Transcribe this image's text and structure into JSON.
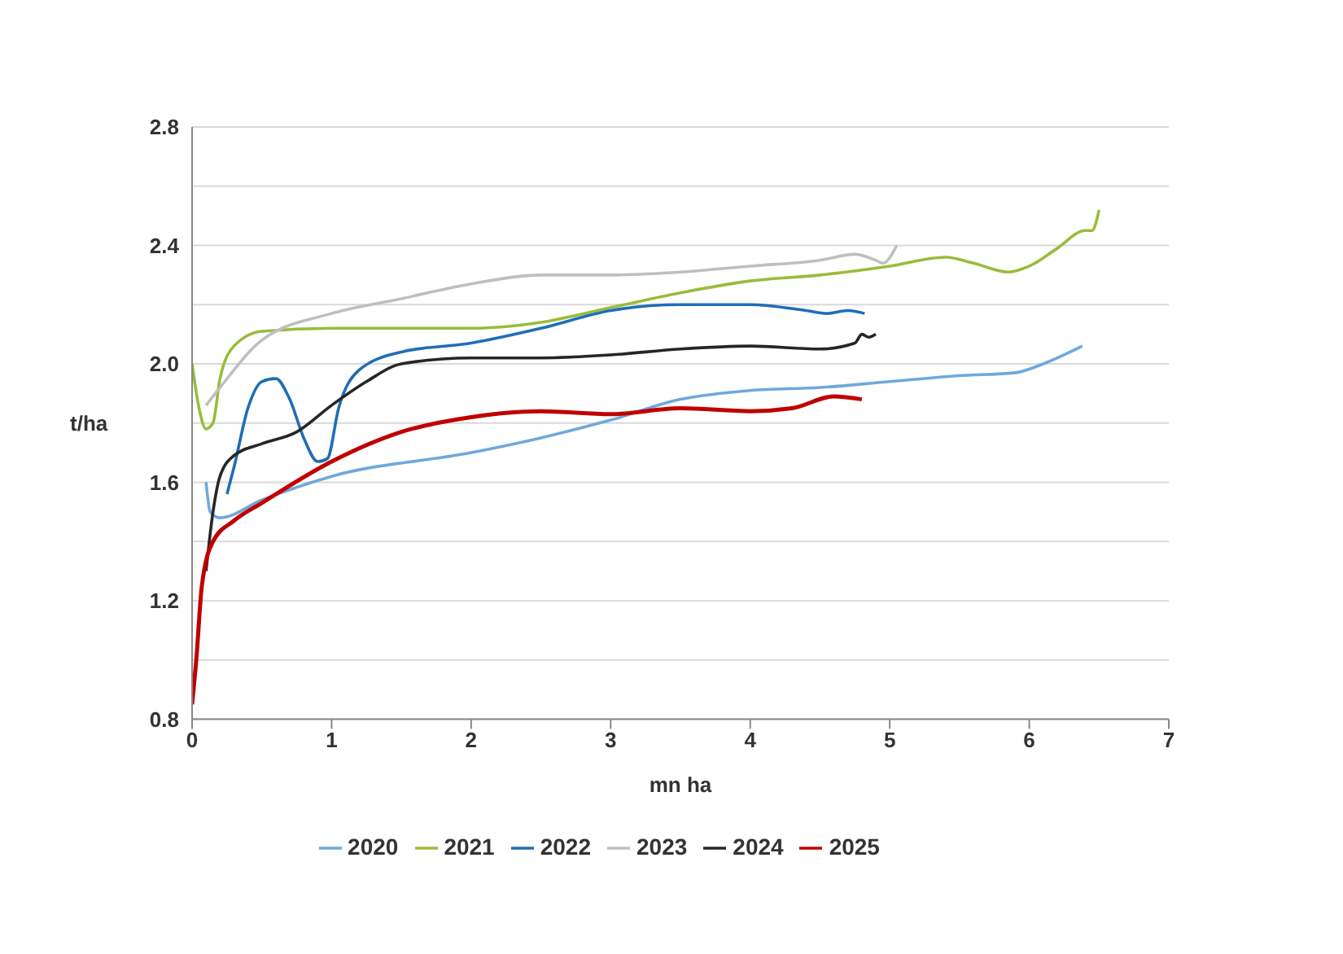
{
  "chart_data": {
    "type": "line",
    "xlabel": "mn ha",
    "ylabel": "t/ha",
    "xlim": [
      0,
      7
    ],
    "xticks": [
      0,
      1,
      2,
      3,
      4,
      5,
      6,
      7
    ],
    "ylim": [
      0.8,
      2.8
    ],
    "yticks": [
      0.8,
      {
        "value": 1.0,
        "label": null
      },
      1.2,
      {
        "value": 1.4,
        "label": null
      },
      1.6,
      {
        "value": 1.8,
        "label": null
      },
      {
        "value": 2.0,
        "label": "2.0"
      },
      {
        "value": 2.2,
        "label": null
      },
      2.4,
      {
        "value": 2.6,
        "label": null
      },
      2.8
    ],
    "grid": "y",
    "legend": "bottom",
    "marker": "none",
    "line_style": "solid",
    "series": [
      {
        "name": "2020",
        "color": "#6fa8dc",
        "x": [
          0.1,
          0.13,
          0.2,
          0.5,
          1,
          2,
          2.5,
          3,
          3.5,
          4,
          4.5,
          5,
          5.5,
          5.9,
          6.1,
          6.38
        ],
        "values": [
          1.6,
          1.5,
          1.48,
          1.54,
          1.62,
          1.7,
          1.75,
          1.81,
          1.88,
          1.91,
          1.92,
          1.94,
          1.96,
          1.97,
          2.0,
          2.06
        ]
      },
      {
        "name": "2021",
        "color": "#9bbb3b",
        "x": [
          0,
          0.05,
          0.1,
          0.15,
          0.2,
          0.3,
          0.5,
          1,
          2,
          2.5,
          3,
          3.5,
          4,
          4.5,
          5,
          5.4,
          5.6,
          5.85,
          6,
          6.2,
          6.4,
          6.45,
          6.5
        ],
        "values": [
          2.0,
          1.85,
          1.78,
          1.8,
          1.95,
          2.06,
          2.11,
          2.12,
          2.12,
          2.14,
          2.19,
          2.24,
          2.28,
          2.3,
          2.33,
          2.36,
          2.34,
          2.31,
          2.33,
          2.39,
          2.45,
          2.45,
          2.52
        ]
      },
      {
        "name": "2022",
        "color": "#1f6eb5",
        "x": [
          0.25,
          0.3,
          0.4,
          0.5,
          0.6,
          0.7,
          0.8,
          0.9,
          0.97,
          1.05,
          1.2,
          1.5,
          2,
          2.5,
          3,
          3.5,
          4,
          4.4,
          4.55,
          4.7,
          4.82
        ],
        "values": [
          1.56,
          1.65,
          1.85,
          1.94,
          1.95,
          1.88,
          1.75,
          1.67,
          1.68,
          1.85,
          1.98,
          2.04,
          2.07,
          2.12,
          2.18,
          2.2,
          2.2,
          2.18,
          2.17,
          2.18,
          2.17
        ]
      },
      {
        "name": "2023",
        "color": "#bfbfbf",
        "x": [
          0.1,
          0.2,
          0.5,
          1,
          1.5,
          2,
          2.5,
          3,
          3.5,
          4,
          4.5,
          4.75,
          4.9,
          4.95,
          5.05
        ],
        "values": [
          1.86,
          1.92,
          2.08,
          2.17,
          2.22,
          2.27,
          2.3,
          2.3,
          2.31,
          2.33,
          2.35,
          2.37,
          2.35,
          2.34,
          2.4
        ]
      },
      {
        "name": "2024",
        "color": "#262626",
        "x": [
          0.1,
          0.15,
          0.2,
          0.3,
          0.5,
          0.75,
          1,
          1.25,
          1.5,
          2,
          2.5,
          3,
          3.5,
          4,
          4.5,
          4.75,
          4.8,
          4.85,
          4.9
        ],
        "values": [
          1.3,
          1.5,
          1.62,
          1.69,
          1.73,
          1.77,
          1.86,
          1.94,
          2.0,
          2.02,
          2.02,
          2.03,
          2.05,
          2.06,
          2.05,
          2.07,
          2.1,
          2.09,
          2.1
        ]
      },
      {
        "name": "2025",
        "color": "#c00000",
        "x": [
          0,
          0.03,
          0.07,
          0.15,
          0.3,
          0.5,
          1,
          1.5,
          2,
          2.5,
          3,
          3.5,
          4,
          4.3,
          4.6,
          4.8
        ],
        "values": [
          0.85,
          1.0,
          1.25,
          1.4,
          1.47,
          1.53,
          1.67,
          1.77,
          1.82,
          1.84,
          1.83,
          1.85,
          1.84,
          1.85,
          1.89,
          1.88
        ]
      }
    ]
  }
}
